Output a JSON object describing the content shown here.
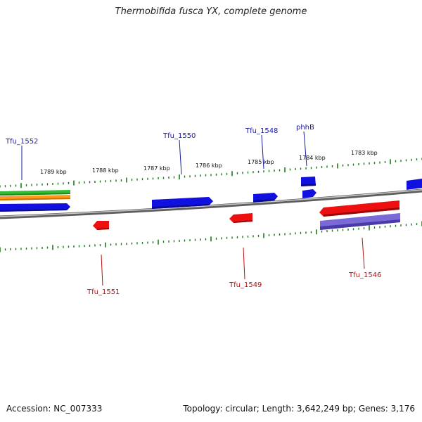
{
  "title": "Thermobifida fusca YX, complete genome",
  "footer": {
    "accession": "Accession: NC_007333",
    "summary": "Topology: circular; Length: 3,642,249 bp; Genes: 3,176"
  },
  "ruler": {
    "labels": [
      "1789 kbp",
      "1788 kbp",
      "1787 kbp",
      "1786 kbp",
      "1785 kbp",
      "1784 kbp",
      "1783 kbp"
    ],
    "positions_kbp": [
      1789,
      1788,
      1787,
      1786,
      1785,
      1784,
      1783
    ],
    "tick_color": "#1a7a1a"
  },
  "colors": {
    "forward": "#1010e0",
    "reverse": "#ee1010",
    "backbone": "#8a8a8a",
    "track_green": "#33bb33",
    "track_orange": "#ff9a1a",
    "track_purple": "#6a5acd",
    "label_forward": "#1a1aa0",
    "label_reverse": "#bb1010"
  },
  "gene_labels": {
    "forward": [
      "Tfu_1552",
      "Tfu_1550",
      "Tfu_1548",
      "phhB"
    ],
    "reverse": [
      "Tfu_1551",
      "Tfu_1549",
      "Tfu_1546"
    ]
  }
}
